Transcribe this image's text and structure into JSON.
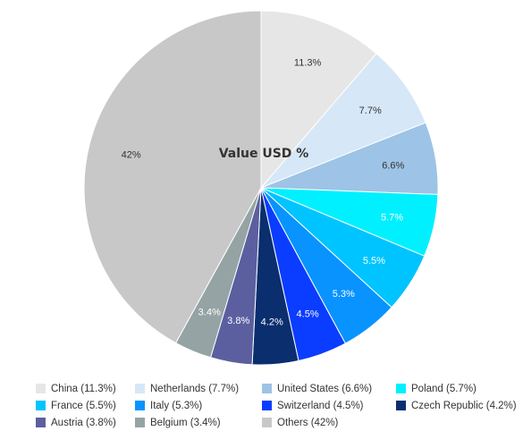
{
  "chart_data": {
    "type": "pie",
    "title": "Value USD %",
    "slices": [
      {
        "name": "China",
        "value": 11.3,
        "label": "11.3%",
        "legend": "China (11.3%)",
        "color": "#e6e6e6",
        "label_color": "#333333"
      },
      {
        "name": "Netherlands",
        "value": 7.7,
        "label": "7.7%",
        "legend": "Netherlands (7.7%)",
        "color": "#d6e7f7",
        "label_color": "#333333"
      },
      {
        "name": "United States",
        "value": 6.6,
        "label": "6.6%",
        "legend": "United States (6.6%)",
        "color": "#9dc3e6",
        "label_color": "#333333"
      },
      {
        "name": "Poland",
        "value": 5.7,
        "label": "5.7%",
        "legend": "Poland (5.7%)",
        "color": "#00f0ff",
        "label_color": "#ffffff"
      },
      {
        "name": "France",
        "value": 5.5,
        "label": "5.5%",
        "legend": "France (5.5%)",
        "color": "#00c4ff",
        "label_color": "#ffffff"
      },
      {
        "name": "Italy",
        "value": 5.3,
        "label": "5.3%",
        "legend": "Italy (5.3%)",
        "color": "#0893ff",
        "label_color": "#ffffff"
      },
      {
        "name": "Switzerland",
        "value": 4.5,
        "label": "4.5%",
        "legend": "Switzerland (4.5%)",
        "color": "#0a3dff",
        "label_color": "#ffffff"
      },
      {
        "name": "Czech Republic",
        "value": 4.2,
        "label": "4.2%",
        "legend": "Czech Republic (4.2%)",
        "color": "#0a2e6e",
        "label_color": "#ffffff"
      },
      {
        "name": "Austria",
        "value": 3.8,
        "label": "3.8%",
        "legend": "Austria (3.8%)",
        "color": "#5b5fa0",
        "label_color": "#ffffff"
      },
      {
        "name": "Belgium",
        "value": 3.4,
        "label": "3.4%",
        "legend": "Belgium (3.4%)",
        "color": "#95a3a4",
        "label_color": "#ffffff"
      },
      {
        "name": "Others",
        "value": 42,
        "label": "42%",
        "legend": "Others (42%)",
        "color": "#c8c8c8",
        "label_color": "#333333"
      }
    ],
    "legend_placement": "bottom"
  }
}
